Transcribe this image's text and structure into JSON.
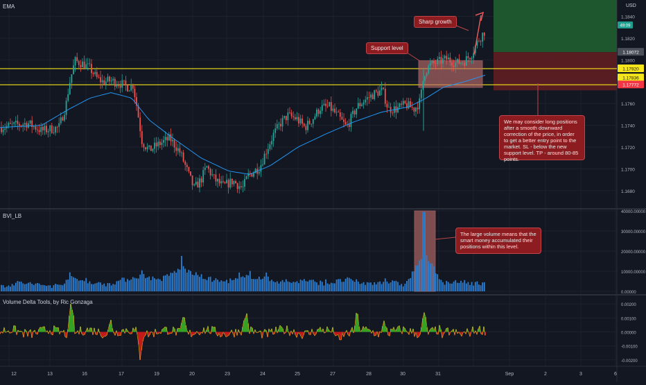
{
  "header": {
    "currency": "USD",
    "countdown": "49:09"
  },
  "panes": {
    "price_label": "EMA",
    "volume_label": "BVI_LB",
    "delta_label": "Volume Delta Tools, by Ric Gonzaga"
  },
  "annotations": {
    "sharp_growth": "Sharp growth",
    "support_level": "Support level",
    "long_note": "We may consider long positions after a smooth downward correction of the price, in order to get a better entry point to the market. SL - below the new support level. TP - around 80-85 points.",
    "volume_note": "The large volume means that the smart money accumulated their positions within this level."
  },
  "colors": {
    "background": "#131722",
    "grid": "#1e222d",
    "bull": "#26a69a",
    "bear": "#ef5350",
    "ema": "#2196f3",
    "support_line": "#f5e51b",
    "volume": "#2f7fd1",
    "delta_pos": "#3dbb25",
    "delta_neg": "#e21a1a",
    "highlight": "#b86a6a"
  },
  "chart_data": [
    {
      "type": "candlestick",
      "title": "EMA",
      "x_ticks": [
        "12",
        "13",
        "16",
        "17",
        "19",
        "20",
        "23",
        "24",
        "25",
        "27",
        "28",
        "30",
        "31",
        "Sep",
        "2",
        "3",
        "6"
      ],
      "y_ticks": [
        1.184,
        1.182,
        1.18,
        1.178,
        1.176,
        1.174,
        1.172,
        1.17,
        1.168
      ],
      "ylim": [
        1.1664,
        1.1855
      ],
      "price_labels": {
        "last": "1.18072",
        "support_top": "1.17920",
        "support_mid": "1.17836",
        "stop": "1.17772"
      },
      "levels": {
        "last": 1.18072,
        "support_top": 1.1792,
        "support_mid": 1.17836,
        "stop": 1.17772
      },
      "close_path": [
        [
          0,
          1.1738
        ],
        [
          40,
          1.1742
        ],
        [
          60,
          1.1735
        ],
        [
          85,
          1.1738
        ],
        [
          95,
          1.1758
        ],
        [
          100,
          1.1778
        ],
        [
          108,
          1.1799
        ],
        [
          118,
          1.1797
        ],
        [
          130,
          1.1792
        ],
        [
          140,
          1.1783
        ],
        [
          148,
          1.178
        ],
        [
          160,
          1.1781
        ],
        [
          175,
          1.1778
        ],
        [
          185,
          1.1775
        ],
        [
          192,
          1.1777
        ],
        [
          198,
          1.1755
        ],
        [
          205,
          1.1725
        ],
        [
          215,
          1.1717
        ],
        [
          230,
          1.1723
        ],
        [
          245,
          1.1728
        ],
        [
          260,
          1.1715
        ],
        [
          272,
          1.1695
        ],
        [
          280,
          1.1682
        ],
        [
          290,
          1.169
        ],
        [
          298,
          1.1702
        ],
        [
          310,
          1.169
        ],
        [
          322,
          1.1684
        ],
        [
          336,
          1.1689
        ],
        [
          350,
          1.1682
        ],
        [
          358,
          1.1694
        ],
        [
          365,
          1.1697
        ],
        [
          375,
          1.1702
        ],
        [
          385,
          1.1718
        ],
        [
          395,
          1.1732
        ],
        [
          405,
          1.1742
        ],
        [
          415,
          1.1749
        ],
        [
          428,
          1.1746
        ],
        [
          440,
          1.1738
        ],
        [
          450,
          1.1745
        ],
        [
          462,
          1.1756
        ],
        [
          475,
          1.1757
        ],
        [
          488,
          1.1748
        ],
        [
          500,
          1.1738
        ],
        [
          515,
          1.1757
        ],
        [
          528,
          1.1764
        ],
        [
          540,
          1.1769
        ],
        [
          552,
          1.1772
        ],
        [
          560,
          1.1755
        ],
        [
          572,
          1.1755
        ],
        [
          585,
          1.1759
        ],
        [
          598,
          1.1755
        ],
        [
          606,
          1.1762
        ],
        [
          612,
          1.1788
        ],
        [
          620,
          1.1795
        ],
        [
          632,
          1.1798
        ],
        [
          645,
          1.1801
        ],
        [
          658,
          1.1797
        ],
        [
          670,
          1.1799
        ],
        [
          680,
          1.1805
        ],
        [
          690,
          1.1818
        ],
        [
          700,
          1.1827
        ]
      ],
      "ema_path": [
        [
          0,
          1.1738
        ],
        [
          60,
          1.174
        ],
        [
          100,
          1.1755
        ],
        [
          130,
          1.1765
        ],
        [
          160,
          1.177
        ],
        [
          190,
          1.1765
        ],
        [
          215,
          1.1745
        ],
        [
          250,
          1.1728
        ],
        [
          290,
          1.171
        ],
        [
          330,
          1.1698
        ],
        [
          360,
          1.1695
        ],
        [
          390,
          1.1703
        ],
        [
          430,
          1.172
        ],
        [
          470,
          1.1732
        ],
        [
          510,
          1.1743
        ],
        [
          550,
          1.1752
        ],
        [
          590,
          1.1757
        ],
        [
          615,
          1.1765
        ],
        [
          640,
          1.1775
        ],
        [
          670,
          1.178
        ],
        [
          700,
          1.1786
        ]
      ]
    },
    {
      "type": "bar",
      "title": "BVI_LB",
      "y_ticks": [
        40000,
        30000,
        20000,
        10000,
        0
      ],
      "y_tick_labels": [
        "40000.00000",
        "30000.00000",
        "20000.00000",
        "10000.00000",
        "0.00000"
      ],
      "ylim": [
        0,
        40000
      ],
      "peaks": [
        [
          0,
          3000
        ],
        [
          30,
          7000
        ],
        [
          60,
          4000
        ],
        [
          85,
          3500
        ],
        [
          100,
          12000
        ],
        [
          125,
          8000
        ],
        [
          150,
          4500
        ],
        [
          175,
          9000
        ],
        [
          205,
          15000
        ],
        [
          230,
          9500
        ],
        [
          262,
          23000
        ],
        [
          290,
          13000
        ],
        [
          320,
          8000
        ],
        [
          345,
          10500
        ],
        [
          360,
          14000
        ],
        [
          385,
          11000
        ],
        [
          412,
          7000
        ],
        [
          440,
          9000
        ],
        [
          470,
          6000
        ],
        [
          500,
          10000
        ],
        [
          530,
          5500
        ],
        [
          555,
          8500
        ],
        [
          585,
          4500
        ],
        [
          612,
          39500
        ],
        [
          640,
          6000
        ],
        [
          670,
          7500
        ],
        [
          700,
          5000
        ]
      ]
    },
    {
      "type": "area",
      "title": "Volume Delta Tools, by Ric Gonzaga",
      "y_ticks": [
        0.002,
        0.001,
        0.0,
        -0.001,
        -0.002
      ],
      "y_tick_labels": [
        "0.00200",
        "0.00100",
        "0.00000",
        "-0.00100",
        "-0.00200"
      ],
      "ylim": [
        -0.0024,
        0.0026
      ]
    }
  ]
}
